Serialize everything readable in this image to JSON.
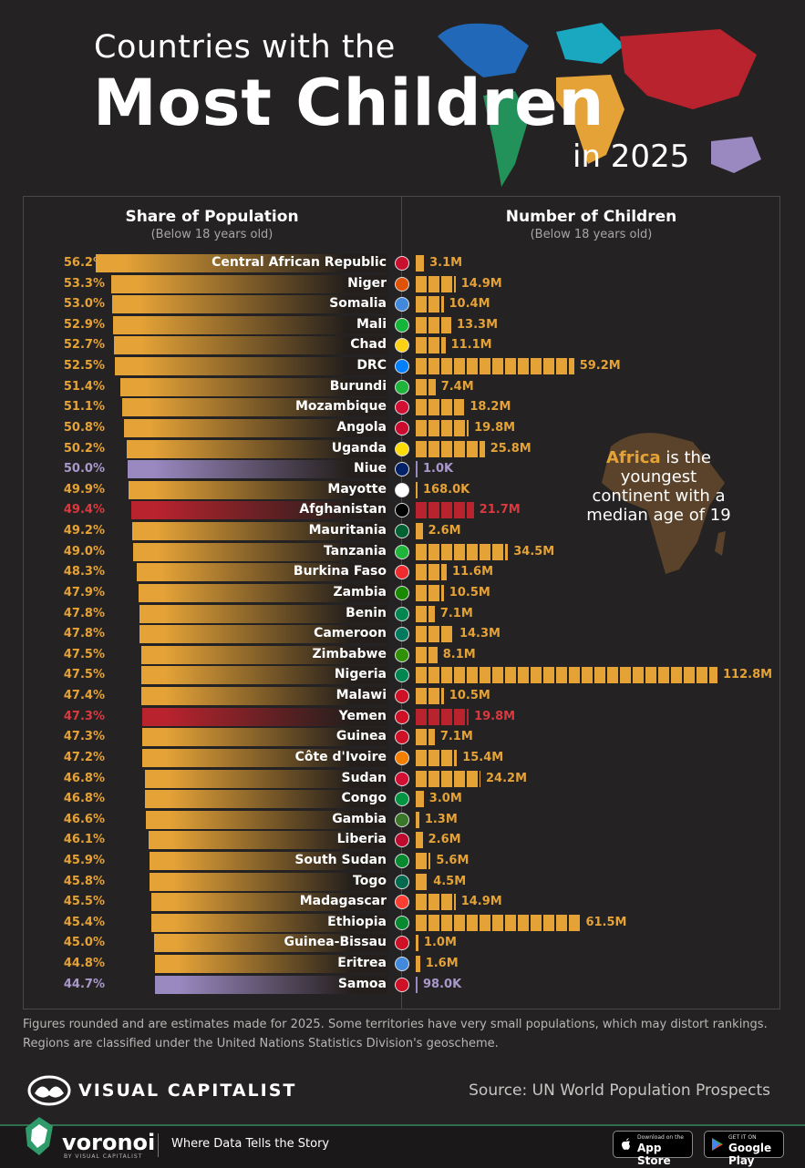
{
  "title": {
    "line1": "Countries with the",
    "line2": "Most Children",
    "line3": "in 2025"
  },
  "headers": {
    "left_title": "Share of Population",
    "left_sub": "(Below 18 years old)",
    "right_title": "Number of Children",
    "right_sub": "(Below 18 years old)"
  },
  "annotation": {
    "highlight": "Africa",
    "text": "is the youngest continent with a median age of 19"
  },
  "colors": {
    "africa": "#e4a237",
    "oceania": "#9a88c0",
    "asia": "#b8232e",
    "background": "#242222"
  },
  "chart_data": {
    "type": "bar",
    "categories": [
      "Central African Republic",
      "Niger",
      "Somalia",
      "Mali",
      "Chad",
      "DRC",
      "Burundi",
      "Mozambique",
      "Angola",
      "Uganda",
      "Niue",
      "Mayotte",
      "Afghanistan",
      "Mauritania",
      "Tanzania",
      "Burkina Faso",
      "Zambia",
      "Benin",
      "Cameroon",
      "Zimbabwe",
      "Nigeria",
      "Malawi",
      "Yemen",
      "Guinea",
      "Côte d'Ivoire",
      "Sudan",
      "Congo",
      "Gambia",
      "Liberia",
      "South Sudan",
      "Togo",
      "Madagascar",
      "Ethiopia",
      "Guinea-Bissau",
      "Eritrea",
      "Samoa"
    ],
    "regions": [
      "africa",
      "africa",
      "africa",
      "africa",
      "africa",
      "africa",
      "africa",
      "africa",
      "africa",
      "africa",
      "oceania",
      "africa",
      "asia",
      "africa",
      "africa",
      "africa",
      "africa",
      "africa",
      "africa",
      "africa",
      "africa",
      "africa",
      "asia",
      "africa",
      "africa",
      "africa",
      "africa",
      "africa",
      "africa",
      "africa",
      "africa",
      "africa",
      "africa",
      "africa",
      "africa",
      "oceania"
    ],
    "series": [
      {
        "name": "Share of Population",
        "unit": "%",
        "values": [
          56.2,
          53.3,
          53.0,
          52.9,
          52.7,
          52.5,
          51.4,
          51.1,
          50.8,
          50.2,
          50.0,
          49.9,
          49.4,
          49.2,
          49.0,
          48.3,
          47.9,
          47.8,
          47.8,
          47.5,
          47.5,
          47.4,
          47.3,
          47.3,
          47.2,
          46.8,
          46.8,
          46.6,
          46.1,
          45.9,
          45.8,
          45.5,
          45.4,
          45.0,
          44.8,
          44.7
        ],
        "labels": [
          "56.2%",
          "53.3%",
          "53.0%",
          "52.9%",
          "52.7%",
          "52.5%",
          "51.4%",
          "51.1%",
          "50.8%",
          "50.2%",
          "50.0%",
          "49.9%",
          "49.4%",
          "49.2%",
          "49.0%",
          "48.3%",
          "47.9%",
          "47.8%",
          "47.8%",
          "47.5%",
          "47.5%",
          "47.4%",
          "47.3%",
          "47.3%",
          "47.2%",
          "46.8%",
          "46.8%",
          "46.6%",
          "46.1%",
          "45.9%",
          "45.8%",
          "45.5%",
          "45.4%",
          "45.0%",
          "44.8%",
          "44.7%"
        ]
      },
      {
        "name": "Number of Children",
        "unit": "millions",
        "values": [
          3.1,
          14.9,
          10.4,
          13.3,
          11.1,
          59.2,
          7.4,
          18.2,
          19.8,
          25.8,
          0.001,
          0.168,
          21.7,
          2.6,
          34.5,
          11.6,
          10.5,
          7.1,
          14.3,
          8.1,
          112.8,
          10.5,
          19.8,
          7.1,
          15.4,
          24.2,
          3.0,
          1.3,
          2.6,
          5.6,
          4.5,
          14.9,
          61.5,
          1.0,
          1.6,
          0.098
        ],
        "labels": [
          "3.1M",
          "14.9M",
          "10.4M",
          "13.3M",
          "11.1M",
          "59.2M",
          "7.4M",
          "18.2M",
          "19.8M",
          "25.8M",
          "1.0K",
          "168.0K",
          "21.7M",
          "2.6M",
          "34.5M",
          "11.6M",
          "10.5M",
          "7.1M",
          "14.3M",
          "8.1M",
          "112.8M",
          "10.5M",
          "19.8M",
          "7.1M",
          "15.4M",
          "24.2M",
          "3.0M",
          "1.3M",
          "2.6M",
          "5.6M",
          "4.5M",
          "14.9M",
          "61.5M",
          "1.0M",
          "1.6M",
          "98.0K"
        ]
      }
    ],
    "xlim_share": [
      0,
      56.2
    ],
    "xlim_children": [
      0,
      112.8
    ]
  },
  "footnote": {
    "line1": "Figures rounded and are estimates made for 2025. Some territories have very small populations, which may distort rankings.",
    "line2": "Regions are classified under the United Nations Statistics Division's geoscheme."
  },
  "brand": {
    "name": "VISUAL CAPITALIST",
    "source": "Source:  UN World Population Prospects"
  },
  "footer": {
    "voronoi": "voronoi",
    "voronoi_sub": "BY VISUAL CAPITALIST",
    "tagline": "Where Data Tells the Story",
    "appstore_small": "Download on the",
    "appstore_big": "App Store",
    "play_small": "GET IT ON",
    "play_big": "Google Play"
  }
}
